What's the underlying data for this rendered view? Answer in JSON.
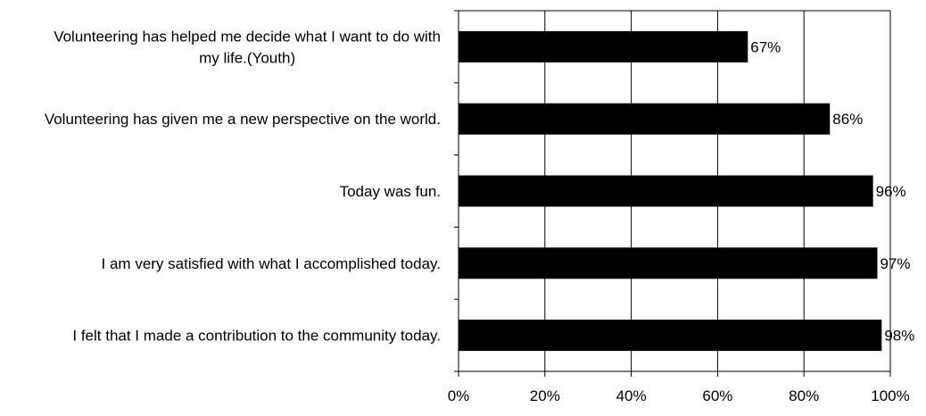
{
  "chart_data": {
    "type": "bar",
    "orientation": "horizontal",
    "categories": [
      "Volunteering has helped me decide what I want to do with my life.(Youth)",
      "Volunteering has given me a new perspective on the world.",
      "Today was fun.",
      "I am very satisfied with what I accomplished today.",
      "I felt that I made a contribution to the community today."
    ],
    "values": [
      67,
      86,
      96,
      97,
      98
    ],
    "data_labels": [
      "67%",
      "86%",
      "96%",
      "97%",
      "98%"
    ],
    "xlim": [
      0,
      100
    ],
    "x_ticks": [
      0,
      20,
      40,
      60,
      80,
      100
    ],
    "x_tick_labels": [
      "0%",
      "20%",
      "40%",
      "60%",
      "80%",
      "100%"
    ],
    "grid": "vertical",
    "bar_color": "#000000",
    "legend": "none"
  }
}
